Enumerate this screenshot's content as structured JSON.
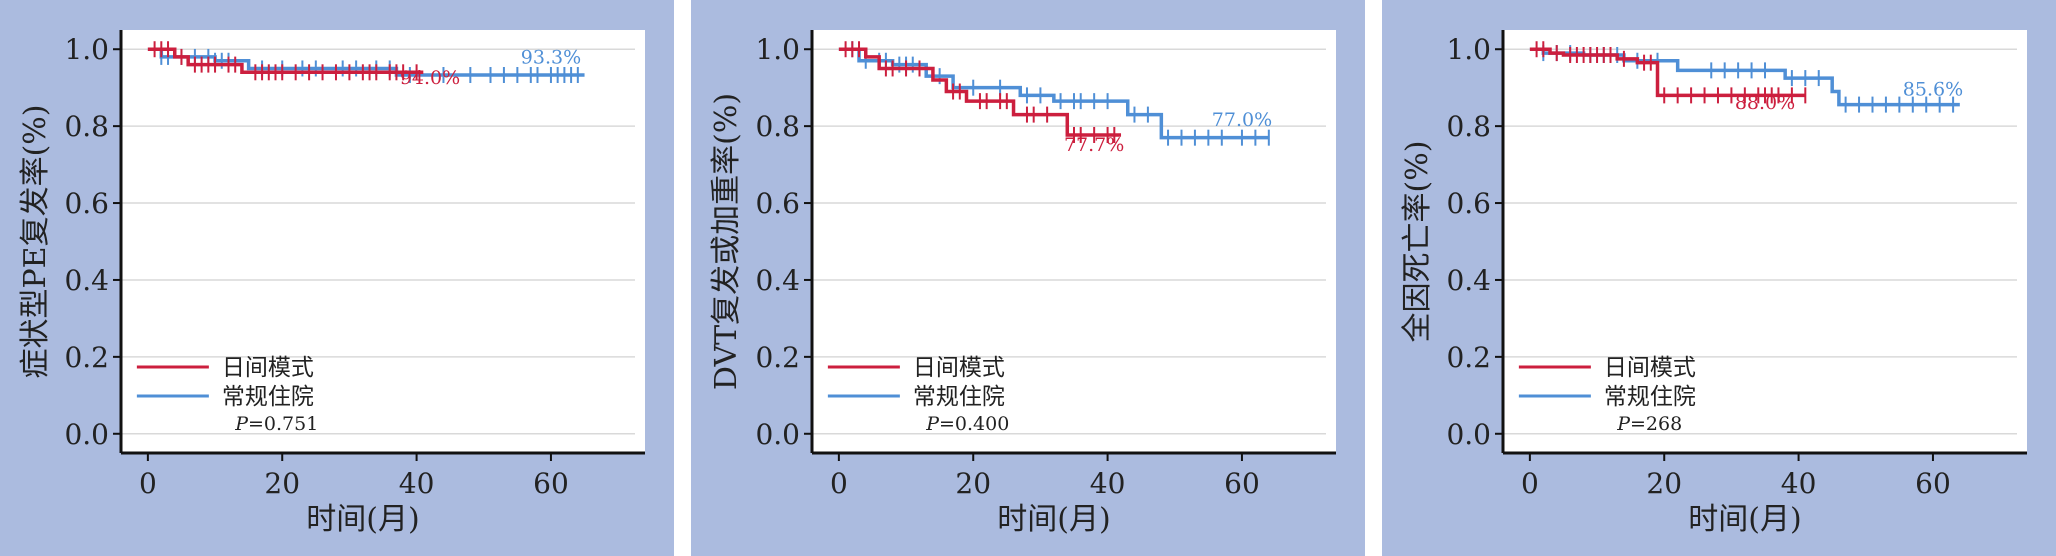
{
  "colors": {
    "panel_background": "#abbbdf",
    "plot_background": "#ffffff",
    "grid": "#d9d9d9",
    "axis": "#111111",
    "text": "#222222"
  },
  "chart_data": [
    {
      "type": "line",
      "ylabel": "症状型PE复发率(%)",
      "xlabel": "时间(月)",
      "xticks": [
        "0",
        "20",
        "40",
        "60"
      ],
      "yticks": [
        "0.0",
        "0.2",
        "0.4",
        "0.6",
        "0.8",
        "1.0"
      ],
      "xlim": [
        -4,
        74
      ],
      "ylim": [
        -0.05,
        1.05
      ],
      "grid": true,
      "legend_position": "bottom-left",
      "p_value": "P=0.751",
      "series": [
        {
          "name": "日间模式",
          "color": "#cc1f3e",
          "steps": [
            [
              0,
              1.0
            ],
            [
              4,
              0.98
            ],
            [
              6,
              0.96
            ],
            [
              14,
              0.94
            ],
            [
              41,
              0.94
            ]
          ],
          "censor_times": [
            1,
            2,
            3,
            5,
            7,
            8,
            9,
            10,
            12,
            13,
            16,
            17,
            18,
            19,
            20,
            22,
            24,
            26,
            28,
            30,
            32,
            33,
            34,
            36,
            37,
            38,
            40
          ],
          "annotation": "94.0%"
        },
        {
          "name": "常规住院",
          "color": "#4f8fd6",
          "steps": [
            [
              0,
              1.0
            ],
            [
              2,
              0.98
            ],
            [
              10,
              0.97
            ],
            [
              15,
              0.95
            ],
            [
              37,
              0.933
            ],
            [
              65,
              0.933
            ]
          ],
          "censor_times": [
            2,
            3,
            5,
            7,
            9,
            10,
            11,
            12,
            17,
            20,
            23,
            25,
            29,
            31,
            34,
            36,
            39,
            44,
            48,
            51,
            53,
            55,
            57,
            58,
            60,
            61,
            62,
            63,
            64
          ],
          "annotation": "93.3%"
        }
      ]
    },
    {
      "type": "line",
      "ylabel": "DVT复发或加重率(%)",
      "xlabel": "时间(月)",
      "xticks": [
        "0",
        "20",
        "40",
        "60"
      ],
      "yticks": [
        "0.0",
        "0.2",
        "0.4",
        "0.6",
        "0.8",
        "1.0"
      ],
      "xlim": [
        -4,
        74
      ],
      "ylim": [
        -0.05,
        1.05
      ],
      "grid": true,
      "legend_position": "bottom-left",
      "p_value": "P=0.400",
      "series": [
        {
          "name": "日间模式",
          "color": "#cc1f3e",
          "steps": [
            [
              0,
              1.0
            ],
            [
              4,
              0.98
            ],
            [
              6,
              0.95
            ],
            [
              14,
              0.92
            ],
            [
              16,
              0.89
            ],
            [
              19,
              0.865
            ],
            [
              26,
              0.83
            ],
            [
              34,
              0.777
            ],
            [
              42,
              0.777
            ]
          ],
          "censor_times": [
            1,
            2,
            3,
            7,
            8,
            10,
            12,
            17,
            18,
            21,
            22,
            24,
            25,
            28,
            29,
            31,
            35,
            36,
            38,
            40,
            41
          ],
          "annotation": "77.7%"
        },
        {
          "name": "常规住院",
          "color": "#4f8fd6",
          "steps": [
            [
              0,
              1.0
            ],
            [
              3,
              0.97
            ],
            [
              8,
              0.96
            ],
            [
              13,
              0.93
            ],
            [
              17,
              0.9
            ],
            [
              27,
              0.88
            ],
            [
              32,
              0.865
            ],
            [
              43,
              0.83
            ],
            [
              48,
              0.77
            ],
            [
              64,
              0.77
            ]
          ],
          "censor_times": [
            2,
            4,
            6,
            7,
            9,
            10,
            11,
            15,
            20,
            24,
            28,
            30,
            33,
            35,
            36,
            38,
            40,
            44,
            46,
            49,
            51,
            53,
            55,
            57,
            60,
            62,
            64
          ],
          "annotation": "77.0%"
        }
      ]
    },
    {
      "type": "line",
      "ylabel": "全因死亡率(%)",
      "xlabel": "时间(月)",
      "xticks": [
        "0",
        "20",
        "40",
        "60"
      ],
      "yticks": [
        "0.0",
        "0.2",
        "0.4",
        "0.6",
        "0.8",
        "1.0"
      ],
      "xlim": [
        -4,
        74
      ],
      "ylim": [
        -0.05,
        1.05
      ],
      "grid": true,
      "legend_position": "bottom-left",
      "p_value": "P=268",
      "series": [
        {
          "name": "日间模式",
          "color": "#cc1f3e",
          "steps": [
            [
              0,
              1.0
            ],
            [
              3,
              0.99
            ],
            [
              5,
              0.985
            ],
            [
              13,
              0.975
            ],
            [
              16,
              0.965
            ],
            [
              19,
              0.88
            ],
            [
              41,
              0.88
            ]
          ],
          "censor_times": [
            1,
            2,
            4,
            6,
            7,
            8,
            9,
            10,
            11,
            12,
            14,
            17,
            18,
            20,
            22,
            24,
            26,
            28,
            30,
            32,
            34,
            35,
            36,
            37,
            39,
            41
          ],
          "annotation": "88.0%"
        },
        {
          "name": "常规住院",
          "color": "#4f8fd6",
          "steps": [
            [
              0,
              1.0
            ],
            [
              2,
              0.99
            ],
            [
              8,
              0.985
            ],
            [
              14,
              0.97
            ],
            [
              22,
              0.945
            ],
            [
              38,
              0.925
            ],
            [
              45,
              0.89
            ],
            [
              46,
              0.856
            ],
            [
              64,
              0.856
            ]
          ],
          "censor_times": [
            2,
            4,
            6,
            9,
            11,
            13,
            16,
            19,
            27,
            29,
            31,
            33,
            35,
            39,
            41,
            43,
            47,
            49,
            51,
            53,
            55,
            57,
            59,
            61,
            63
          ],
          "annotation": "85.6%"
        }
      ]
    }
  ]
}
